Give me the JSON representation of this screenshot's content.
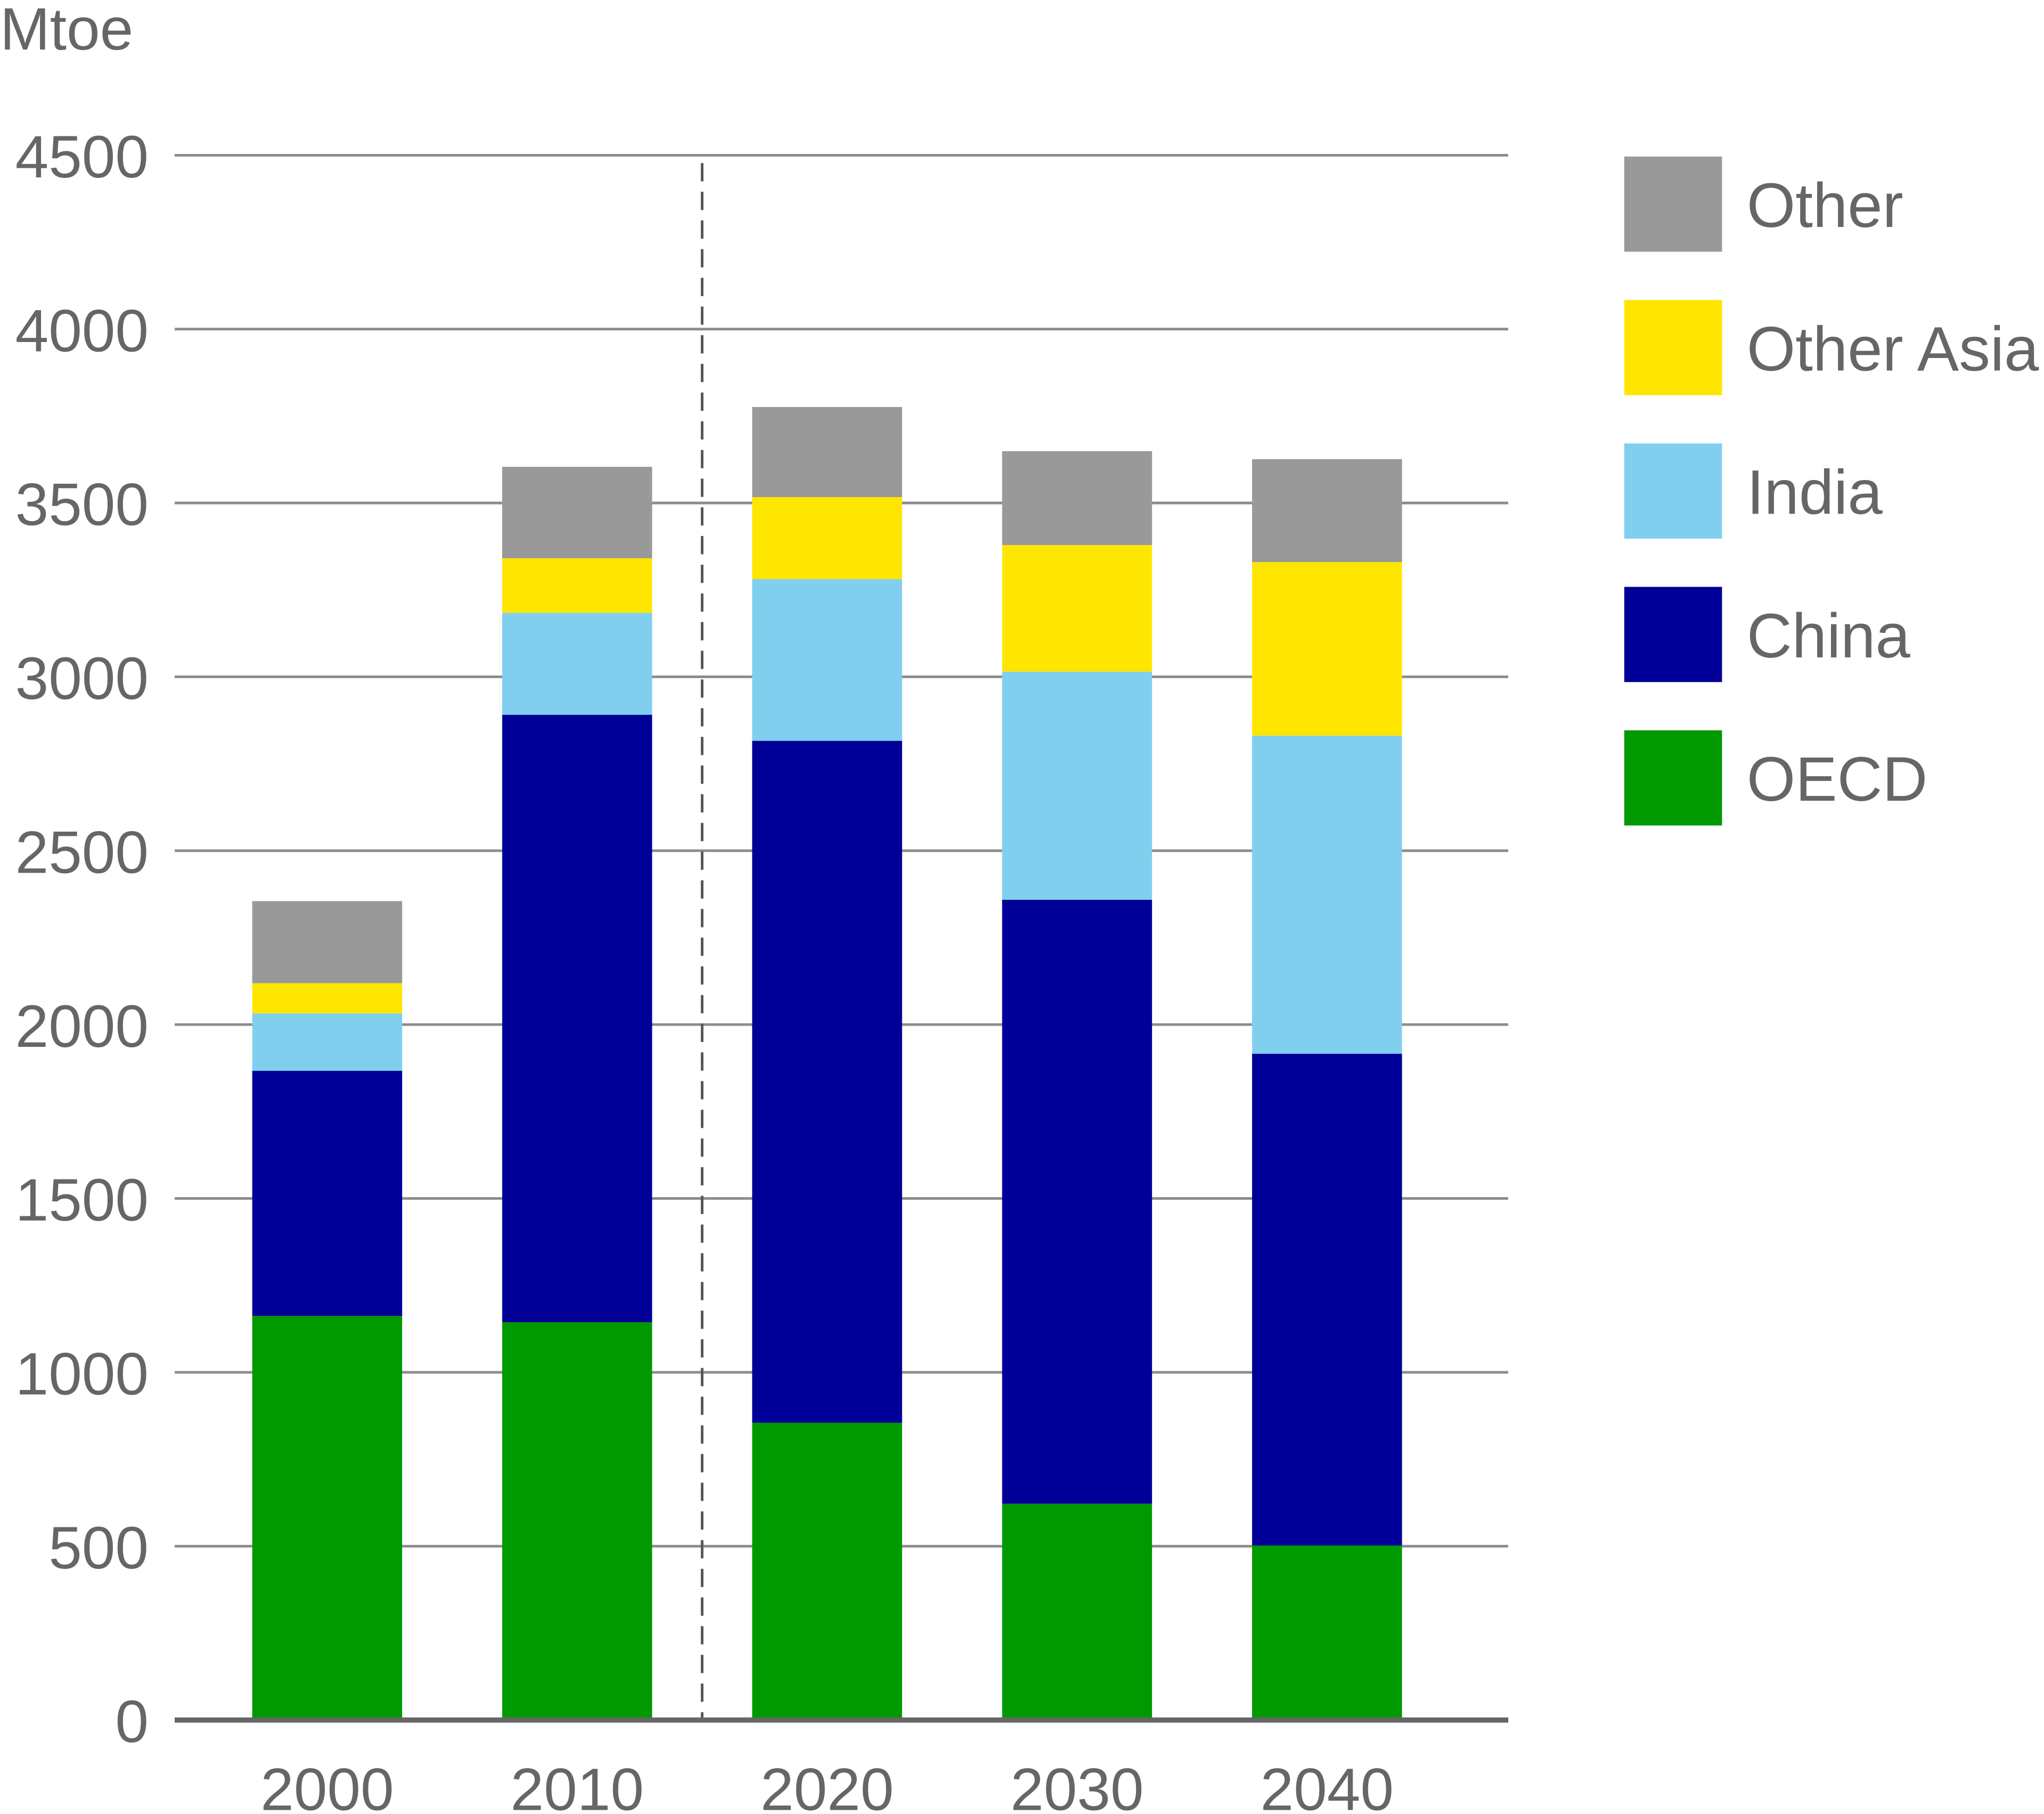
{
  "chart_data": {
    "type": "bar",
    "stacked": true,
    "title": "",
    "xlabel": "",
    "ylabel": "Mtoe",
    "ylim": [
      0,
      4500
    ],
    "yticks": [
      0,
      500,
      1000,
      1500,
      2000,
      2500,
      3000,
      3500,
      4000,
      4500
    ],
    "grid": true,
    "legend_position": "right",
    "categories": [
      "2000",
      "2010",
      "2020",
      "2030",
      "2040"
    ],
    "projection_divider_between": [
      "2010",
      "2020"
    ],
    "series": [
      {
        "name": "OECD",
        "color": "#009900",
        "values": [
          1162,
          1144,
          855,
          622,
          502
        ]
      },
      {
        "name": "China",
        "color": "#000099",
        "values": [
          705,
          1747,
          1961,
          1737,
          1414
        ]
      },
      {
        "name": "India",
        "color": "#80CFEF",
        "values": [
          165,
          293,
          465,
          656,
          915
        ]
      },
      {
        "name": "Other Asia",
        "color": "#FFE600",
        "values": [
          87,
          157,
          236,
          364,
          499
        ]
      },
      {
        "name": "Other",
        "color": "#999999",
        "values": [
          236,
          263,
          259,
          270,
          296
        ]
      }
    ]
  }
}
